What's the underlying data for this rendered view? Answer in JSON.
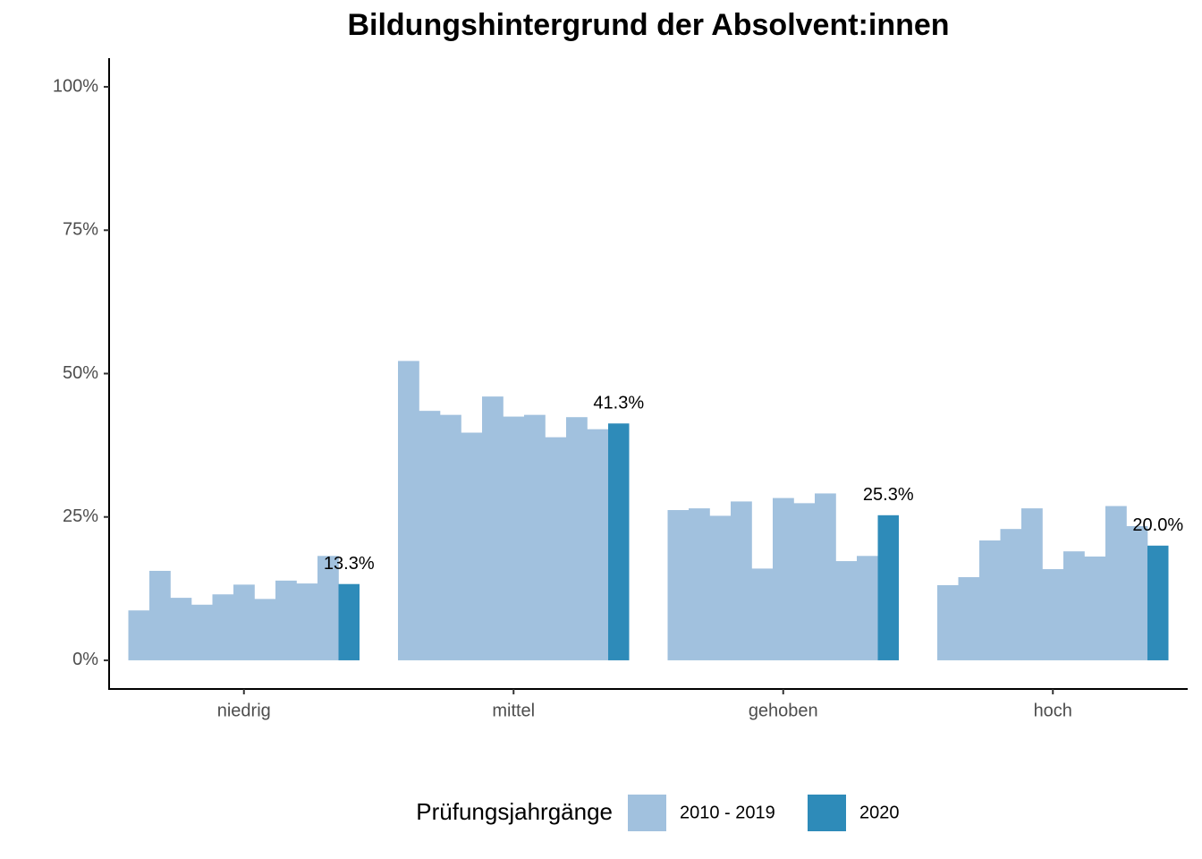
{
  "chart_data": {
    "type": "bar",
    "title": "Bildungshintergrund der Absolvent:innen",
    "categories": [
      "niedrig",
      "mittel",
      "gehoben",
      "hoch"
    ],
    "legend_title": "Prüfungsjahrgänge",
    "series": [
      {
        "name": "2010 - 2019",
        "color": "#a1c1de",
        "values": [
          [
            8.7,
            15.6,
            10.9,
            9.7,
            11.5,
            13.2,
            10.7,
            13.9,
            13.4,
            18.2
          ],
          [
            52.2,
            43.5,
            42.8,
            39.7,
            46.0,
            42.5,
            42.8,
            38.9,
            42.4,
            40.3
          ],
          [
            26.2,
            26.5,
            25.2,
            27.7,
            16.0,
            28.3,
            27.4,
            29.1,
            17.3,
            18.2
          ],
          [
            13.1,
            14.5,
            20.9,
            22.9,
            26.5,
            15.9,
            19.0,
            18.1,
            26.9,
            23.4
          ]
        ]
      },
      {
        "name": "2020",
        "color": "#2e8bb9",
        "values": [
          13.3,
          41.3,
          25.3,
          20.0
        ],
        "value_labels": [
          "13.3%",
          "41.3%",
          "25.3%",
          "20.0%"
        ]
      }
    ],
    "ylim": [
      -5,
      105
    ],
    "yticks": [
      {
        "value": 0,
        "label": "0%"
      },
      {
        "value": 25,
        "label": "25%"
      },
      {
        "value": 50,
        "label": "50%"
      },
      {
        "value": 75,
        "label": "75%"
      },
      {
        "value": 100,
        "label": "100%"
      }
    ],
    "grid": false,
    "legend": "bottom"
  }
}
